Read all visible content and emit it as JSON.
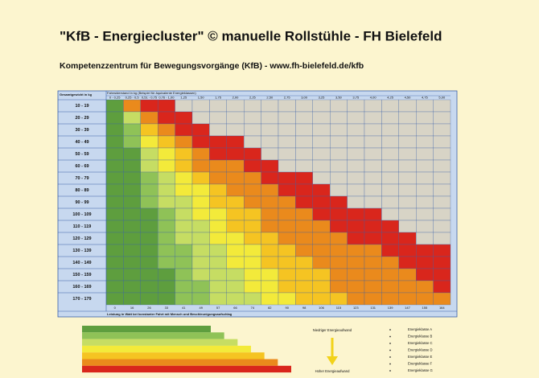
{
  "title": "\"KfB - Energiecluster\" © manuelle Rollstühle - FH Bielefeld",
  "subtitle": "Kompetenzzentrum für Bewegungsvorgänge (KfB) - www.fh-bielefeld.de/kfb",
  "table": {
    "row_header": "Gesamtgewicht in kg",
    "column_header": "Fahrwiderstand in kg (Beispiel für äquivalente Energieklassen)",
    "columns": [
      "0 - 0,25",
      "0,25 - 0,5",
      "0,51 - 0,75",
      "0,76 - 1,00",
      "1,25",
      "1,50",
      "1,75",
      "2,00",
      "2,25",
      "2,50",
      "2,75",
      "3,00",
      "3,25",
      "3,50",
      "3,75",
      "4,00",
      "4,25",
      "4,50",
      "4,75",
      "5,00"
    ],
    "rows": [
      "10 - 19",
      "20 - 29",
      "30 - 39",
      "40 - 49",
      "50 - 59",
      "60 - 69",
      "70 - 79",
      "80 - 89",
      "90 - 99",
      "100 - 109",
      "110 - 119",
      "120 - 129",
      "130 - 139",
      "140 - 149",
      "150 - 159",
      "160 - 169",
      "170 - 179"
    ],
    "cell_colors": [
      [
        "#5e9e3e",
        "#ea8a1c",
        "#d9261c",
        "#d9261c",
        "#d8d4c6",
        "#d8d4c6",
        "#d8d4c6",
        "#d8d4c6",
        "#d8d4c6",
        "#d8d4c6",
        "#d8d4c6",
        "#d8d4c6",
        "#d8d4c6",
        "#d8d4c6",
        "#d8d4c6",
        "#d8d4c6",
        "#d8d4c6",
        "#d8d4c6",
        "#d8d4c6",
        "#d8d4c6"
      ],
      [
        "#5e9e3e",
        "#c6dd63",
        "#ea8a1c",
        "#d9261c",
        "#d9261c",
        "#d8d4c6",
        "#d8d4c6",
        "#d8d4c6",
        "#d8d4c6",
        "#d8d4c6",
        "#d8d4c6",
        "#d8d4c6",
        "#d8d4c6",
        "#d8d4c6",
        "#d8d4c6",
        "#d8d4c6",
        "#d8d4c6",
        "#d8d4c6",
        "#d8d4c6",
        "#d8d4c6"
      ],
      [
        "#5e9e3e",
        "#8fc257",
        "#f5c422",
        "#ea8a1c",
        "#d9261c",
        "#d9261c",
        "#d8d4c6",
        "#d8d4c6",
        "#d8d4c6",
        "#d8d4c6",
        "#d8d4c6",
        "#d8d4c6",
        "#d8d4c6",
        "#d8d4c6",
        "#d8d4c6",
        "#d8d4c6",
        "#d8d4c6",
        "#d8d4c6",
        "#d8d4c6",
        "#d8d4c6"
      ],
      [
        "#5e9e3e",
        "#8fc257",
        "#f3ea3a",
        "#f5c422",
        "#ea8a1c",
        "#d9261c",
        "#d9261c",
        "#d9261c",
        "#d8d4c6",
        "#d8d4c6",
        "#d8d4c6",
        "#d8d4c6",
        "#d8d4c6",
        "#d8d4c6",
        "#d8d4c6",
        "#d8d4c6",
        "#d8d4c6",
        "#d8d4c6",
        "#d8d4c6",
        "#d8d4c6"
      ],
      [
        "#5e9e3e",
        "#5e9e3e",
        "#c6dd63",
        "#f3ea3a",
        "#f5c422",
        "#ea8a1c",
        "#d9261c",
        "#d9261c",
        "#d9261c",
        "#d8d4c6",
        "#d8d4c6",
        "#d8d4c6",
        "#d8d4c6",
        "#d8d4c6",
        "#d8d4c6",
        "#d8d4c6",
        "#d8d4c6",
        "#d8d4c6",
        "#d8d4c6",
        "#d8d4c6"
      ],
      [
        "#5e9e3e",
        "#5e9e3e",
        "#c6dd63",
        "#f3ea3a",
        "#f5c422",
        "#ea8a1c",
        "#ea8a1c",
        "#ea8a1c",
        "#d9261c",
        "#d9261c",
        "#d8d4c6",
        "#d8d4c6",
        "#d8d4c6",
        "#d8d4c6",
        "#d8d4c6",
        "#d8d4c6",
        "#d8d4c6",
        "#d8d4c6",
        "#d8d4c6",
        "#d8d4c6"
      ],
      [
        "#5e9e3e",
        "#5e9e3e",
        "#8fc257",
        "#c6dd63",
        "#f3ea3a",
        "#f5c422",
        "#ea8a1c",
        "#ea8a1c",
        "#ea8a1c",
        "#d9261c",
        "#d9261c",
        "#d9261c",
        "#d8d4c6",
        "#d8d4c6",
        "#d8d4c6",
        "#d8d4c6",
        "#d8d4c6",
        "#d8d4c6",
        "#d8d4c6",
        "#d8d4c6"
      ],
      [
        "#5e9e3e",
        "#5e9e3e",
        "#8fc257",
        "#c6dd63",
        "#f3ea3a",
        "#f3ea3a",
        "#f5c422",
        "#ea8a1c",
        "#ea8a1c",
        "#ea8a1c",
        "#d9261c",
        "#d9261c",
        "#d9261c",
        "#d8d4c6",
        "#d8d4c6",
        "#d8d4c6",
        "#d8d4c6",
        "#d8d4c6",
        "#d8d4c6",
        "#d8d4c6"
      ],
      [
        "#5e9e3e",
        "#5e9e3e",
        "#8fc257",
        "#c6dd63",
        "#c6dd63",
        "#f3ea3a",
        "#f5c422",
        "#f5c422",
        "#ea8a1c",
        "#ea8a1c",
        "#ea8a1c",
        "#d9261c",
        "#d9261c",
        "#d9261c",
        "#d8d4c6",
        "#d8d4c6",
        "#d8d4c6",
        "#d8d4c6",
        "#d8d4c6",
        "#d8d4c6"
      ],
      [
        "#5e9e3e",
        "#5e9e3e",
        "#5e9e3e",
        "#8fc257",
        "#c6dd63",
        "#f3ea3a",
        "#f3ea3a",
        "#f5c422",
        "#f5c422",
        "#ea8a1c",
        "#ea8a1c",
        "#ea8a1c",
        "#d9261c",
        "#d9261c",
        "#d9261c",
        "#d9261c",
        "#d8d4c6",
        "#d8d4c6",
        "#d8d4c6",
        "#d8d4c6"
      ],
      [
        "#5e9e3e",
        "#5e9e3e",
        "#5e9e3e",
        "#8fc257",
        "#c6dd63",
        "#c6dd63",
        "#f3ea3a",
        "#f5c422",
        "#f5c422",
        "#ea8a1c",
        "#ea8a1c",
        "#ea8a1c",
        "#ea8a1c",
        "#d9261c",
        "#d9261c",
        "#d9261c",
        "#d9261c",
        "#d8d4c6",
        "#d8d4c6",
        "#d8d4c6"
      ],
      [
        "#5e9e3e",
        "#5e9e3e",
        "#5e9e3e",
        "#8fc257",
        "#c6dd63",
        "#c6dd63",
        "#f3ea3a",
        "#f3ea3a",
        "#f5c422",
        "#f5c422",
        "#ea8a1c",
        "#ea8a1c",
        "#ea8a1c",
        "#ea8a1c",
        "#d9261c",
        "#d9261c",
        "#d9261c",
        "#d9261c",
        "#d8d4c6",
        "#d8d4c6"
      ],
      [
        "#5e9e3e",
        "#5e9e3e",
        "#5e9e3e",
        "#8fc257",
        "#8fc257",
        "#c6dd63",
        "#c6dd63",
        "#f3ea3a",
        "#f3ea3a",
        "#f5c422",
        "#f5c422",
        "#ea8a1c",
        "#ea8a1c",
        "#ea8a1c",
        "#ea8a1c",
        "#ea8a1c",
        "#d9261c",
        "#d9261c",
        "#d9261c",
        "#d9261c"
      ],
      [
        "#5e9e3e",
        "#5e9e3e",
        "#5e9e3e",
        "#8fc257",
        "#8fc257",
        "#c6dd63",
        "#c6dd63",
        "#f3ea3a",
        "#f3ea3a",
        "#f5c422",
        "#f5c422",
        "#f5c422",
        "#ea8a1c",
        "#ea8a1c",
        "#ea8a1c",
        "#ea8a1c",
        "#ea8a1c",
        "#d9261c",
        "#d9261c",
        "#d9261c"
      ],
      [
        "#5e9e3e",
        "#5e9e3e",
        "#5e9e3e",
        "#5e9e3e",
        "#8fc257",
        "#c6dd63",
        "#c6dd63",
        "#c6dd63",
        "#f3ea3a",
        "#f3ea3a",
        "#f5c422",
        "#f5c422",
        "#f5c422",
        "#ea8a1c",
        "#ea8a1c",
        "#ea8a1c",
        "#ea8a1c",
        "#ea8a1c",
        "#d9261c",
        "#d9261c"
      ],
      [
        "#5e9e3e",
        "#5e9e3e",
        "#5e9e3e",
        "#5e9e3e",
        "#8fc257",
        "#8fc257",
        "#c6dd63",
        "#c6dd63",
        "#f3ea3a",
        "#f3ea3a",
        "#f5c422",
        "#f5c422",
        "#f5c422",
        "#ea8a1c",
        "#ea8a1c",
        "#ea8a1c",
        "#ea8a1c",
        "#ea8a1c",
        "#ea8a1c",
        "#d9261c"
      ],
      [
        "#5e9e3e",
        "#5e9e3e",
        "#5e9e3e",
        "#5e9e3e",
        "#8fc257",
        "#8fc257",
        "#c6dd63",
        "#c6dd63",
        "#c6dd63",
        "#f3ea3a",
        "#f3ea3a",
        "#f5c422",
        "#f5c422",
        "#f5c422",
        "#ea8a1c",
        "#ea8a1c",
        "#ea8a1c",
        "#ea8a1c",
        "#ea8a1c",
        "#ea8a1c"
      ]
    ],
    "power_values": [
      0,
      16,
      26,
      33,
      41,
      49,
      57,
      66,
      74,
      82,
      90,
      98,
      106,
      115,
      123,
      131,
      139,
      147,
      155,
      164
    ],
    "power_caption": "Leistung in Watt bei konstanter Fahrt mit Mensch und Beschleunigungsaufschlag"
  },
  "legend": {
    "low": "Niedriger Energieaufwand",
    "high": "Hoher Energieaufwand",
    "classes": [
      {
        "label": "Energieklasse A",
        "color": "#5e9e3e"
      },
      {
        "label": "Energieklasse B",
        "color": "#8fc257"
      },
      {
        "label": "Energieklasse C",
        "color": "#c6dd63"
      },
      {
        "label": "Energieklasse D",
        "color": "#f3ea3a"
      },
      {
        "label": "Energieklasse E",
        "color": "#f5c422"
      },
      {
        "label": "Energieklasse F",
        "color": "#ea8a1c"
      },
      {
        "label": "Energieklasse G",
        "color": "#d9261c"
      }
    ]
  }
}
